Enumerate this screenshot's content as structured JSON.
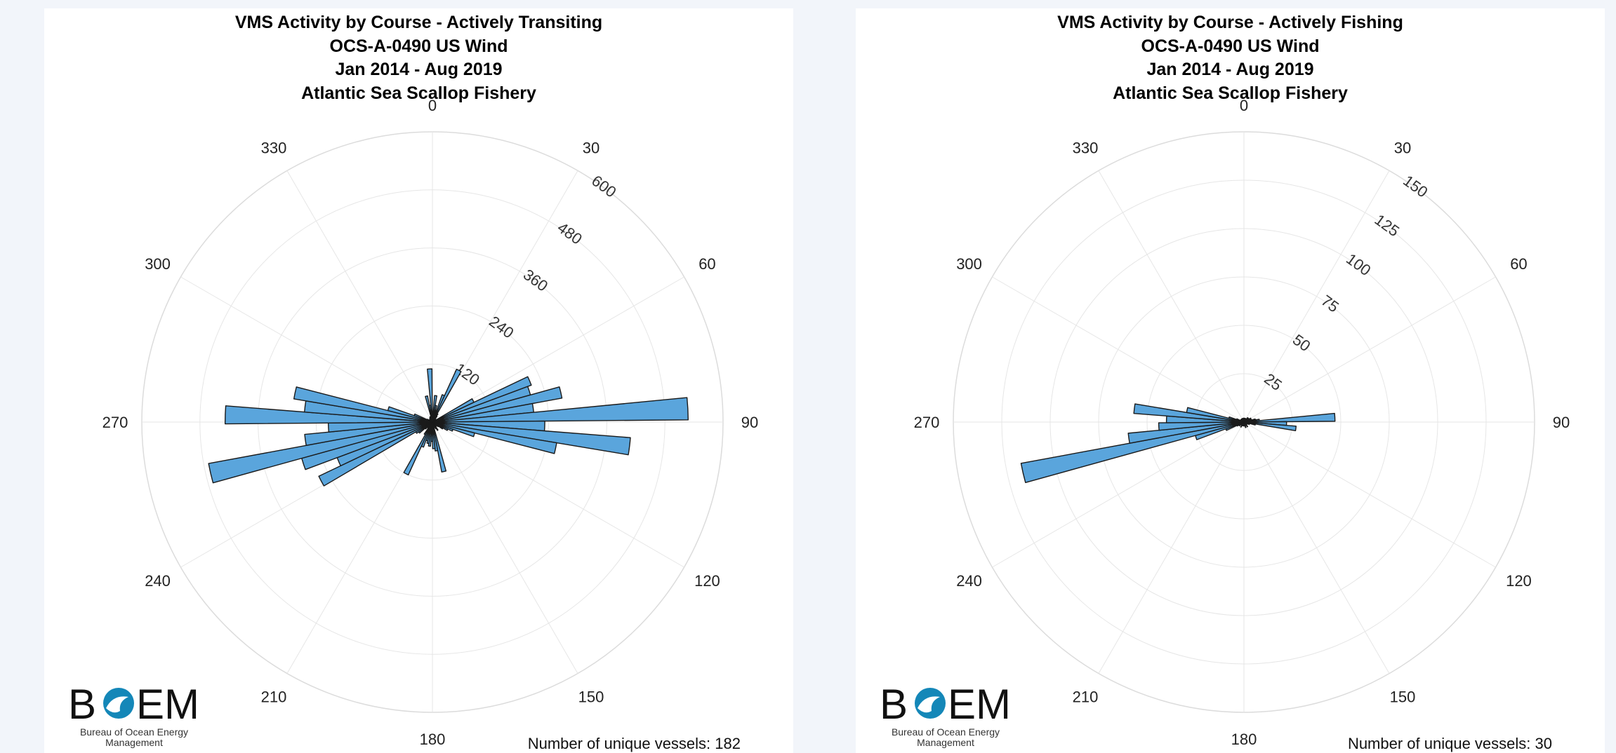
{
  "colors": {
    "bar_fill": "#5aa5dc",
    "bar_stroke": "#1a1a1a",
    "grid": "#e6e6e6",
    "background": "#f2f5fa",
    "logo_text": "#111111",
    "logo_wave": "#1487b8"
  },
  "logo": {
    "wordmark_b": "B",
    "wordmark_rest": "EM",
    "line1": "Bureau of Ocean Energy",
    "line2": "Management"
  },
  "chart_data": [
    {
      "type": "polar-bar",
      "title_lines": [
        "VMS Activity by Course - Actively Transiting",
        "OCS-A-0490 US Wind",
        "Jan 2014 - Aug 2019",
        "Atlantic Sea Scallop Fishery"
      ],
      "angle_ticks": [
        "0",
        "30",
        "60",
        "90",
        "120",
        "150",
        "180",
        "210",
        "240",
        "270",
        "300",
        "330"
      ],
      "radial_ticks": [
        "120",
        "240",
        "360",
        "480",
        "600"
      ],
      "rlim": [
        0,
        600
      ],
      "radial_label_angle": 36,
      "bin_width_deg": 5,
      "bars": [
        {
          "angle": 2,
          "value": 16
        },
        {
          "angle": 7,
          "value": 55
        },
        {
          "angle": 12,
          "value": 35
        },
        {
          "angle": 17,
          "value": 25
        },
        {
          "angle": 22,
          "value": 60
        },
        {
          "angle": 27,
          "value": 120
        },
        {
          "angle": 32,
          "value": 20
        },
        {
          "angle": 37,
          "value": 15
        },
        {
          "angle": 42,
          "value": 10
        },
        {
          "angle": 47,
          "value": 8
        },
        {
          "angle": 52,
          "value": 8
        },
        {
          "angle": 57,
          "value": 6
        },
        {
          "angle": 62,
          "value": 95
        },
        {
          "angle": 67,
          "value": 218
        },
        {
          "angle": 72,
          "value": 210
        },
        {
          "angle": 77,
          "value": 272
        },
        {
          "angle": 82,
          "value": 210
        },
        {
          "angle": 87,
          "value": 528
        },
        {
          "angle": 92,
          "value": 232
        },
        {
          "angle": 97,
          "value": 410
        },
        {
          "angle": 102,
          "value": 260
        },
        {
          "angle": 107,
          "value": 90
        },
        {
          "angle": 112,
          "value": 45
        },
        {
          "angle": 117,
          "value": 35
        },
        {
          "angle": 122,
          "value": 25
        },
        {
          "angle": 127,
          "value": 15
        },
        {
          "angle": 132,
          "value": 10
        },
        {
          "angle": 137,
          "value": 10
        },
        {
          "angle": 142,
          "value": 12
        },
        {
          "angle": 147,
          "value": 20
        },
        {
          "angle": 152,
          "value": 15
        },
        {
          "angle": 157,
          "value": 10
        },
        {
          "angle": 162,
          "value": 12
        },
        {
          "angle": 167,
          "value": 105
        },
        {
          "angle": 172,
          "value": 60
        },
        {
          "angle": 177,
          "value": 55
        },
        {
          "angle": 182,
          "value": 40
        },
        {
          "angle": 187,
          "value": 50
        },
        {
          "angle": 192,
          "value": 45
        },
        {
          "angle": 197,
          "value": 40
        },
        {
          "angle": 202,
          "value": 55
        },
        {
          "angle": 207,
          "value": 120
        },
        {
          "angle": 212,
          "value": 30
        },
        {
          "angle": 217,
          "value": 15
        },
        {
          "angle": 222,
          "value": 10
        },
        {
          "angle": 227,
          "value": 20
        },
        {
          "angle": 232,
          "value": 35
        },
        {
          "angle": 237,
          "value": 40
        },
        {
          "angle": 242,
          "value": 260
        },
        {
          "angle": 247,
          "value": 210
        },
        {
          "angle": 252,
          "value": 280
        },
        {
          "angle": 257,
          "value": 470
        },
        {
          "angle": 262,
          "value": 265
        },
        {
          "angle": 267,
          "value": 215
        },
        {
          "angle": 272,
          "value": 428
        },
        {
          "angle": 277,
          "value": 265
        },
        {
          "angle": 282,
          "value": 290
        },
        {
          "angle": 287,
          "value": 95
        },
        {
          "angle": 292,
          "value": 40
        },
        {
          "angle": 297,
          "value": 12
        },
        {
          "angle": 302,
          "value": 8
        },
        {
          "angle": 307,
          "value": 6
        },
        {
          "angle": 312,
          "value": 6
        },
        {
          "angle": 317,
          "value": 8
        },
        {
          "angle": 322,
          "value": 8
        },
        {
          "angle": 327,
          "value": 10
        },
        {
          "angle": 332,
          "value": 10
        },
        {
          "angle": 337,
          "value": 12
        },
        {
          "angle": 342,
          "value": 10
        },
        {
          "angle": 347,
          "value": 55
        },
        {
          "angle": 352,
          "value": 35
        },
        {
          "angle": 357,
          "value": 110
        }
      ],
      "footer": "Number of unique vessels: 182"
    },
    {
      "type": "polar-bar",
      "title_lines": [
        "VMS Activity by Course - Actively Fishing",
        "OCS-A-0490 US Wind",
        "Jan 2014 - Aug 2019",
        "Atlantic Sea Scallop Fishery"
      ],
      "angle_ticks": [
        "0",
        "30",
        "60",
        "90",
        "120",
        "150",
        "180",
        "210",
        "240",
        "270",
        "300",
        "330"
      ],
      "radial_ticks": [
        "25",
        "50",
        "75",
        "100",
        "125",
        "150"
      ],
      "rlim": [
        0,
        150
      ],
      "radial_label_angle": 36,
      "bin_width_deg": 5,
      "bars": [
        {
          "angle": 2,
          "value": 2
        },
        {
          "angle": 12,
          "value": 2
        },
        {
          "angle": 22,
          "value": 2
        },
        {
          "angle": 32,
          "value": 2
        },
        {
          "angle": 42,
          "value": 3
        },
        {
          "angle": 52,
          "value": 3
        },
        {
          "angle": 62,
          "value": 4
        },
        {
          "angle": 72,
          "value": 4
        },
        {
          "angle": 77,
          "value": 6
        },
        {
          "angle": 82,
          "value": 8
        },
        {
          "angle": 87,
          "value": 47
        },
        {
          "angle": 92,
          "value": 22
        },
        {
          "angle": 97,
          "value": 27
        },
        {
          "angle": 102,
          "value": 6
        },
        {
          "angle": 112,
          "value": 3
        },
        {
          "angle": 122,
          "value": 2
        },
        {
          "angle": 142,
          "value": 3
        },
        {
          "angle": 152,
          "value": 2
        },
        {
          "angle": 162,
          "value": 3
        },
        {
          "angle": 172,
          "value": 2
        },
        {
          "angle": 182,
          "value": 2
        },
        {
          "angle": 192,
          "value": 2
        },
        {
          "angle": 202,
          "value": 2
        },
        {
          "angle": 212,
          "value": 3
        },
        {
          "angle": 222,
          "value": 2
        },
        {
          "angle": 232,
          "value": 3
        },
        {
          "angle": 242,
          "value": 4
        },
        {
          "angle": 247,
          "value": 10
        },
        {
          "angle": 252,
          "value": 26
        },
        {
          "angle": 257,
          "value": 117
        },
        {
          "angle": 262,
          "value": 60
        },
        {
          "angle": 267,
          "value": 44
        },
        {
          "angle": 272,
          "value": 40
        },
        {
          "angle": 277,
          "value": 57
        },
        {
          "angle": 282,
          "value": 30
        },
        {
          "angle": 287,
          "value": 8
        },
        {
          "angle": 292,
          "value": 4
        },
        {
          "angle": 302,
          "value": 2
        },
        {
          "angle": 312,
          "value": 2
        },
        {
          "angle": 322,
          "value": 2
        },
        {
          "angle": 332,
          "value": 2
        },
        {
          "angle": 342,
          "value": 2
        },
        {
          "angle": 352,
          "value": 2
        }
      ],
      "footer": "Number of unique vessels: 30"
    }
  ]
}
